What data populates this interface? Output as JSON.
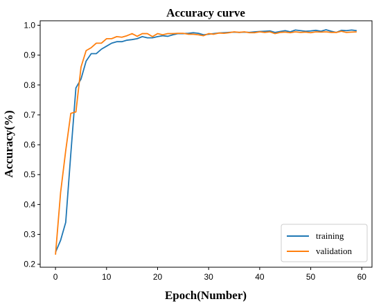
{
  "chart_data": {
    "type": "line",
    "title": "Accuracy curve",
    "xlabel": "Epoch(Number)",
    "ylabel": "Accuracy(%)",
    "xlim": [
      -3,
      62
    ],
    "ylim": [
      0.19,
      1.015
    ],
    "xticks": [
      0,
      10,
      20,
      30,
      40,
      50,
      60
    ],
    "yticks": [
      0.2,
      0.3,
      0.4,
      0.5,
      0.6,
      0.7,
      0.8,
      0.9,
      1.0
    ],
    "xtick_labels": [
      "0",
      "10",
      "20",
      "30",
      "40",
      "50",
      "60"
    ],
    "ytick_labels": [
      "0.2",
      "0.3",
      "0.4",
      "0.5",
      "0.6",
      "0.7",
      "0.8",
      "0.9",
      "1.0"
    ],
    "grid": false,
    "legend": "bottom-right",
    "x": [
      0,
      1,
      2,
      3,
      4,
      5,
      6,
      7,
      8,
      9,
      10,
      11,
      12,
      13,
      14,
      15,
      16,
      17,
      18,
      19,
      20,
      21,
      22,
      23,
      24,
      25,
      26,
      27,
      28,
      29,
      30,
      31,
      32,
      33,
      34,
      35,
      36,
      37,
      38,
      39,
      40,
      41,
      42,
      43,
      44,
      45,
      46,
      47,
      48,
      49,
      50,
      51,
      52,
      53,
      54,
      55,
      56,
      57,
      58,
      59
    ],
    "series": [
      {
        "name": "training",
        "color": "#1f77b4",
        "values": [
          0.24,
          0.28,
          0.34,
          0.57,
          0.79,
          0.82,
          0.88,
          0.905,
          0.905,
          0.92,
          0.93,
          0.94,
          0.945,
          0.945,
          0.95,
          0.952,
          0.955,
          0.962,
          0.958,
          0.958,
          0.962,
          0.965,
          0.963,
          0.968,
          0.972,
          0.972,
          0.973,
          0.975,
          0.973,
          0.968,
          0.97,
          0.972,
          0.974,
          0.975,
          0.976,
          0.977,
          0.976,
          0.977,
          0.976,
          0.978,
          0.979,
          0.98,
          0.981,
          0.976,
          0.979,
          0.982,
          0.978,
          0.984,
          0.982,
          0.98,
          0.981,
          0.983,
          0.98,
          0.985,
          0.98,
          0.976,
          0.983,
          0.982,
          0.984,
          0.982
        ]
      },
      {
        "name": "validation",
        "color": "#ff7f0e",
        "values": [
          0.232,
          0.44,
          0.58,
          0.705,
          0.71,
          0.86,
          0.915,
          0.925,
          0.94,
          0.94,
          0.955,
          0.955,
          0.962,
          0.96,
          0.965,
          0.972,
          0.963,
          0.972,
          0.972,
          0.962,
          0.972,
          0.968,
          0.972,
          0.972,
          0.973,
          0.973,
          0.97,
          0.97,
          0.968,
          0.965,
          0.972,
          0.97,
          0.974,
          0.973,
          0.975,
          0.978,
          0.976,
          0.978,
          0.975,
          0.975,
          0.978,
          0.976,
          0.978,
          0.972,
          0.976,
          0.977,
          0.975,
          0.978,
          0.976,
          0.977,
          0.975,
          0.978,
          0.977,
          0.978,
          0.976,
          0.976,
          0.98,
          0.976,
          0.977,
          0.978
        ]
      }
    ]
  }
}
